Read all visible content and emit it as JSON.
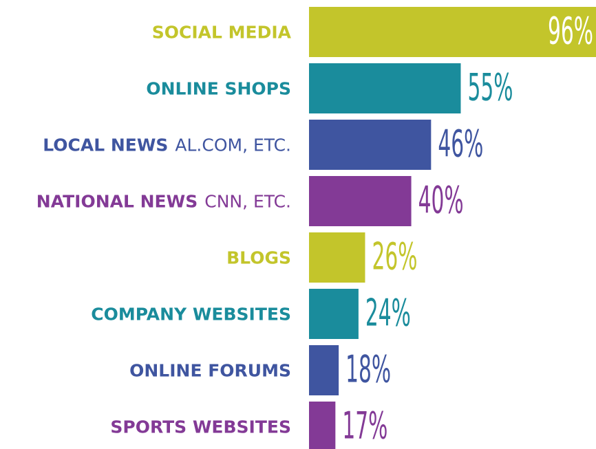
{
  "chart_data": {
    "type": "bar",
    "orientation": "horizontal",
    "categories": [
      "SOCIAL MEDIA",
      "ONLINE SHOPS",
      "LOCAL NEWS",
      "NATIONAL NEWS",
      "BLOGS",
      "COMPANY WEBSITES",
      "ONLINE FORUMS",
      "SPORTS WEBSITES"
    ],
    "category_notes": [
      null,
      null,
      "AL.COM, ETC.",
      "CNN, ETC.",
      null,
      null,
      null,
      null
    ],
    "values": [
      96,
      55,
      46,
      40,
      26,
      24,
      18,
      17
    ],
    "value_labels": [
      "96%",
      "55%",
      "46%",
      "40%",
      "26%",
      "24%",
      "18%",
      "17%"
    ],
    "colors": [
      "#c3c52b",
      "#1a8c9c",
      "#3f55a0",
      "#833a96",
      "#c3c52b",
      "#1a8c9c",
      "#3f55a0",
      "#833a96"
    ],
    "xlim": [
      9,
      96
    ]
  }
}
